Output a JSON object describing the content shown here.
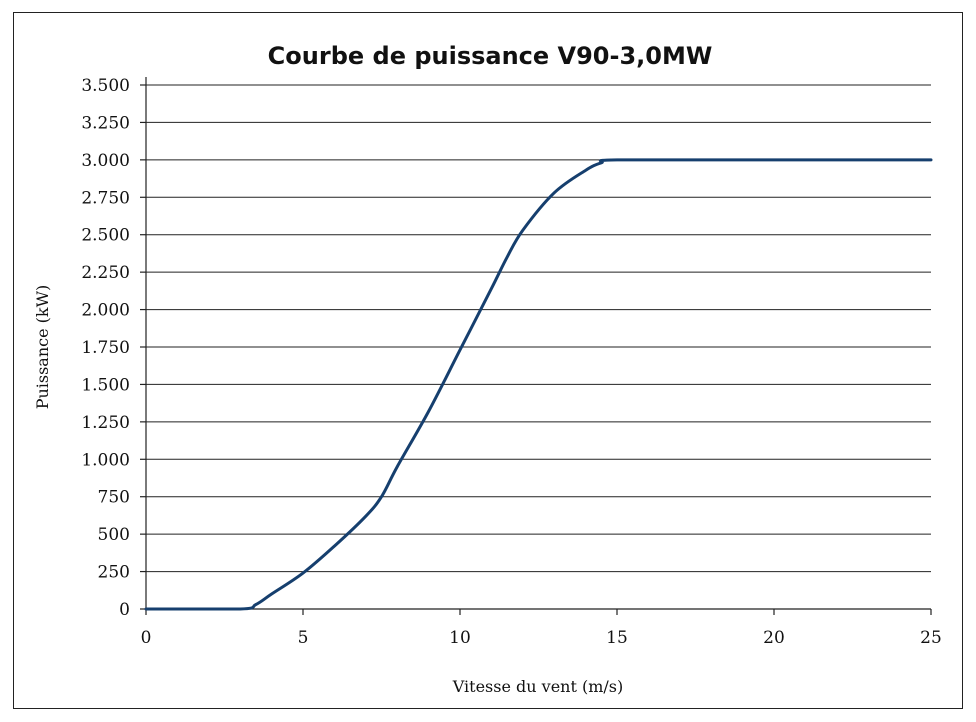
{
  "chart_data": {
    "type": "line",
    "title": "Courbe de puissance V90-3,0MW",
    "xlabel": "Vitesse du vent (m/s)",
    "ylabel": "Puissance (kW)",
    "xlim": [
      0,
      25
    ],
    "ylim": [
      0,
      3500
    ],
    "x_ticks": [
      0,
      5,
      10,
      15,
      20,
      25
    ],
    "x_tick_labels": [
      "0",
      "5",
      "10",
      "15",
      "20",
      "25"
    ],
    "y_ticks": [
      0,
      250,
      500,
      750,
      1000,
      1250,
      1500,
      1750,
      2000,
      2250,
      2500,
      2750,
      3000,
      3250,
      3500
    ],
    "y_tick_labels": [
      "0",
      "250",
      "500",
      "750",
      "1.000",
      "1.250",
      "1.500",
      "1.750",
      "2.000",
      "2.250",
      "2.500",
      "2.750",
      "3.000",
      "3.250",
      "3.500"
    ],
    "grid": "horizontal",
    "legend": "none",
    "colors": {
      "series": "#163f6e",
      "grid": "#222222"
    },
    "series": [
      {
        "x": [
          0,
          3,
          3.5,
          4,
          5,
          6,
          7,
          7.5,
          8,
          9,
          10,
          11,
          11.5,
          12,
          13,
          14,
          14.5,
          15,
          20,
          25
        ],
        "values": [
          0,
          0,
          30,
          100,
          240,
          420,
          620,
          750,
          950,
          1320,
          1730,
          2140,
          2350,
          2530,
          2780,
          2930,
          2980,
          3000,
          3000,
          3000
        ]
      }
    ]
  }
}
